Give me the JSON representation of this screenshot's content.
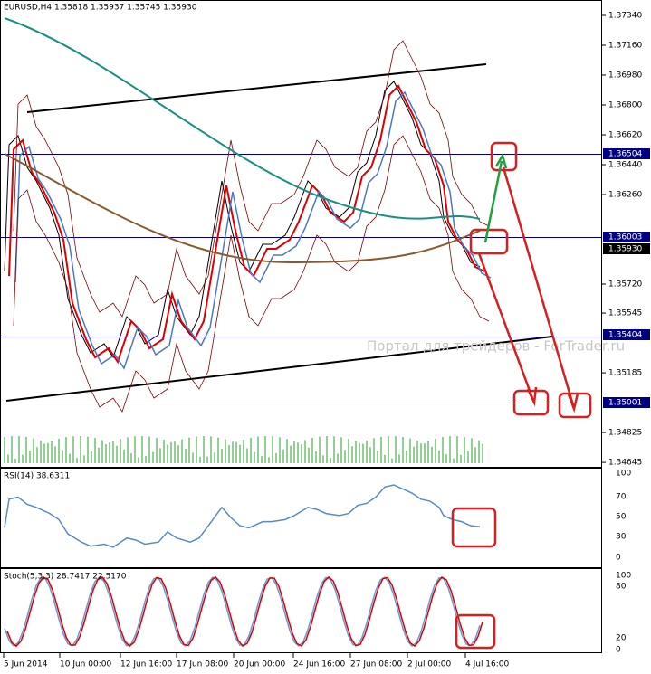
{
  "header": {
    "title": "EURUSD,H4  1.35818 1.35937 1.35745 1.35930"
  },
  "price_axis": [
    "1.37340",
    "1.37160",
    "1.36980",
    "1.36800",
    "1.36620",
    "1.36440",
    "1.36260",
    "1.35720",
    "1.35545",
    "1.35185",
    "1.34825",
    "1.34645"
  ],
  "levels": [
    "1.36504",
    "1.36003",
    "1.35930",
    "1.35404",
    "1.35001"
  ],
  "watermark": "Портал для трейдеров - ForTrader.ru",
  "rsi": {
    "label": "RSI(14) 38.6311",
    "axis": [
      "100",
      "70",
      "50",
      "30",
      "0"
    ]
  },
  "stoch": {
    "label": "Stoch(5,3,3) 28.7417 22.5170",
    "axis": [
      "100",
      "80",
      "20",
      "0"
    ]
  },
  "dates": [
    "5 Jun 2014",
    "10 Jun 00:00",
    "12 Jun 16:00",
    "17 Jun 08:00",
    "20 Jun 00:00",
    "24 Jun 16:00",
    "27 Jun 08:00",
    "2 Jul 00:00",
    "4 Jul 16:00"
  ]
}
